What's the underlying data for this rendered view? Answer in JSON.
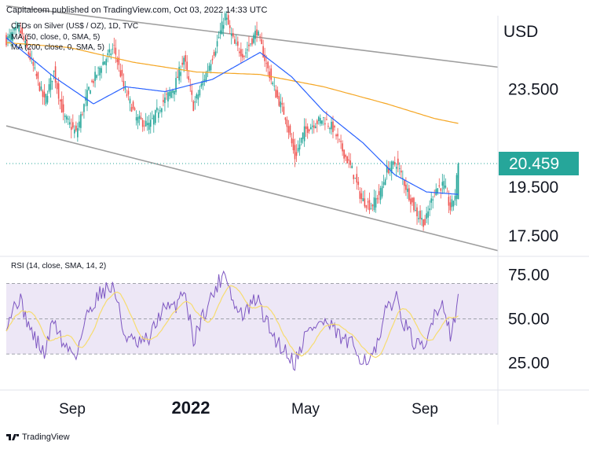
{
  "header": {
    "text": "Capitalcom published on TradingView.com, Oct 03, 2022 14:33 UTC"
  },
  "legend": [
    "CFDs on Silver (US$ / OZ), 1D, TVC",
    "MA (50, close, 0, SMA, 5)",
    "MA (200, close, 0, SMA, 5)"
  ],
  "rsi_legend": "RSI (14, close, SMA, 14, 2)",
  "footer": {
    "brand": "TradingView"
  },
  "colors": {
    "up": "#26a69a",
    "down": "#ef5350",
    "ma50": "#2962ff",
    "ma200": "#f5a623",
    "rsi": "#7e57c2",
    "rsi_ma": "#f7dc6f",
    "rsi_band": "#ede7f6",
    "price_tag": "#26a69a",
    "channel": "#9e9e9e"
  },
  "chart_data": [
    {
      "type": "candlestick",
      "title": "CFDs on Silver (US$ / OZ), 1D, TVC",
      "y_unit": "USD",
      "y_ticks": [
        "23.500",
        "19.500",
        "17.500"
      ],
      "y_tick_values": [
        23.5,
        19.5,
        17.5
      ],
      "x_ticks": [
        "Sep",
        "2022",
        "May",
        "Sep"
      ],
      "last_price": "20.459",
      "ylim": [
        16.7,
        26.5
      ],
      "anchors": [
        {
          "t": 0,
          "close": 25.5
        },
        {
          "t": 8,
          "close": 26.0
        },
        {
          "t": 16,
          "close": 24.6
        },
        {
          "t": 24,
          "close": 23.0
        },
        {
          "t": 30,
          "close": 24.2
        },
        {
          "t": 36,
          "close": 22.4
        },
        {
          "t": 44,
          "close": 21.7
        },
        {
          "t": 52,
          "close": 23.5
        },
        {
          "t": 60,
          "close": 24.5
        },
        {
          "t": 68,
          "close": 25.2
        },
        {
          "t": 74,
          "close": 23.6
        },
        {
          "t": 82,
          "close": 22.3
        },
        {
          "t": 90,
          "close": 22.0
        },
        {
          "t": 98,
          "close": 22.9
        },
        {
          "t": 106,
          "close": 23.6
        },
        {
          "t": 112,
          "close": 24.8
        },
        {
          "t": 118,
          "close": 22.8
        },
        {
          "t": 124,
          "close": 23.8
        },
        {
          "t": 132,
          "close": 25.2
        },
        {
          "t": 138,
          "close": 26.5
        },
        {
          "t": 144,
          "close": 25.3
        },
        {
          "t": 150,
          "close": 24.9
        },
        {
          "t": 158,
          "close": 25.9
        },
        {
          "t": 164,
          "close": 24.5
        },
        {
          "t": 170,
          "close": 23.3
        },
        {
          "t": 176,
          "close": 22.4
        },
        {
          "t": 182,
          "close": 20.7
        },
        {
          "t": 188,
          "close": 21.8
        },
        {
          "t": 194,
          "close": 22.1
        },
        {
          "t": 200,
          "close": 22.3
        },
        {
          "t": 206,
          "close": 21.9
        },
        {
          "t": 212,
          "close": 21.0
        },
        {
          "t": 218,
          "close": 20.2
        },
        {
          "t": 224,
          "close": 19.0
        },
        {
          "t": 230,
          "close": 18.7
        },
        {
          "t": 236,
          "close": 19.3
        },
        {
          "t": 240,
          "close": 20.2
        },
        {
          "t": 246,
          "close": 20.5
        },
        {
          "t": 252,
          "close": 19.5
        },
        {
          "t": 258,
          "close": 18.5
        },
        {
          "t": 264,
          "close": 18.0
        },
        {
          "t": 270,
          "close": 19.4
        },
        {
          "t": 276,
          "close": 19.6
        },
        {
          "t": 280,
          "close": 18.6
        },
        {
          "t": 283,
          "close": 19.2
        },
        {
          "t": 285,
          "close": 20.459
        }
      ],
      "ma50_points": [
        {
          "t": 0,
          "v": 25.6
        },
        {
          "t": 30,
          "v": 24.0
        },
        {
          "t": 55,
          "v": 22.9
        },
        {
          "t": 75,
          "v": 23.6
        },
        {
          "t": 100,
          "v": 23.4
        },
        {
          "t": 130,
          "v": 23.9
        },
        {
          "t": 160,
          "v": 25.0
        },
        {
          "t": 180,
          "v": 24.0
        },
        {
          "t": 200,
          "v": 22.6
        },
        {
          "t": 225,
          "v": 21.3
        },
        {
          "t": 245,
          "v": 20.0
        },
        {
          "t": 265,
          "v": 19.3
        },
        {
          "t": 285,
          "v": 19.2
        }
      ],
      "ma200_points": [
        {
          "t": 0,
          "v": 25.4
        },
        {
          "t": 40,
          "v": 25.2
        },
        {
          "t": 80,
          "v": 24.6
        },
        {
          "t": 120,
          "v": 24.2
        },
        {
          "t": 160,
          "v": 24.1
        },
        {
          "t": 200,
          "v": 23.6
        },
        {
          "t": 240,
          "v": 22.9
        },
        {
          "t": 270,
          "v": 22.3
        },
        {
          "t": 285,
          "v": 22.1
        }
      ],
      "channel_lines": [
        {
          "from": {
            "t": 0,
            "v": 26.9
          },
          "to": {
            "t": 310,
            "v": 24.4
          }
        },
        {
          "from": {
            "t": 0,
            "v": 22.0
          },
          "to": {
            "t": 310,
            "v": 16.9
          }
        }
      ]
    },
    {
      "type": "line",
      "title": "RSI (14, close, SMA, 14, 2)",
      "y_ticks": [
        "75.00",
        "50.00",
        "25.00"
      ],
      "y_tick_values": [
        75,
        50,
        25
      ],
      "ylim": [
        10,
        85
      ],
      "band": [
        30,
        70
      ],
      "anchors": [
        {
          "t": 0,
          "v": 48
        },
        {
          "t": 8,
          "v": 62
        },
        {
          "t": 16,
          "v": 42
        },
        {
          "t": 24,
          "v": 30
        },
        {
          "t": 30,
          "v": 50
        },
        {
          "t": 36,
          "v": 35
        },
        {
          "t": 44,
          "v": 30
        },
        {
          "t": 52,
          "v": 55
        },
        {
          "t": 60,
          "v": 66
        },
        {
          "t": 68,
          "v": 68
        },
        {
          "t": 74,
          "v": 42
        },
        {
          "t": 82,
          "v": 35
        },
        {
          "t": 90,
          "v": 38
        },
        {
          "t": 98,
          "v": 55
        },
        {
          "t": 106,
          "v": 56
        },
        {
          "t": 112,
          "v": 68
        },
        {
          "t": 118,
          "v": 38
        },
        {
          "t": 124,
          "v": 52
        },
        {
          "t": 132,
          "v": 67
        },
        {
          "t": 138,
          "v": 78
        },
        {
          "t": 144,
          "v": 56
        },
        {
          "t": 150,
          "v": 52
        },
        {
          "t": 158,
          "v": 62
        },
        {
          "t": 164,
          "v": 48
        },
        {
          "t": 170,
          "v": 38
        },
        {
          "t": 176,
          "v": 32
        },
        {
          "t": 182,
          "v": 25
        },
        {
          "t": 188,
          "v": 40
        },
        {
          "t": 194,
          "v": 46
        },
        {
          "t": 200,
          "v": 48
        },
        {
          "t": 206,
          "v": 44
        },
        {
          "t": 212,
          "v": 38
        },
        {
          "t": 218,
          "v": 35
        },
        {
          "t": 224,
          "v": 28
        },
        {
          "t": 230,
          "v": 27
        },
        {
          "t": 236,
          "v": 38
        },
        {
          "t": 240,
          "v": 58
        },
        {
          "t": 246,
          "v": 61
        },
        {
          "t": 252,
          "v": 45
        },
        {
          "t": 258,
          "v": 35
        },
        {
          "t": 264,
          "v": 32
        },
        {
          "t": 270,
          "v": 55
        },
        {
          "t": 276,
          "v": 58
        },
        {
          "t": 280,
          "v": 42
        },
        {
          "t": 283,
          "v": 48
        },
        {
          "t": 285,
          "v": 65
        }
      ]
    }
  ]
}
